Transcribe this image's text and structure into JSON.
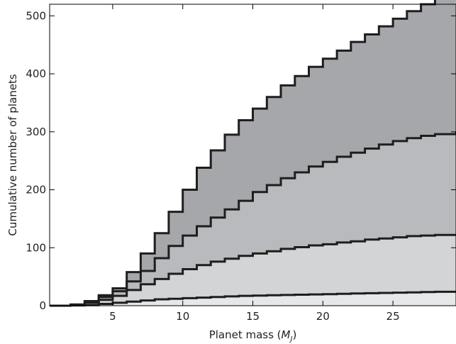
{
  "chart_data": {
    "type": "area",
    "stacked": false,
    "step": true,
    "xlabel": "Planet mass (",
    "xlabel_symbol": "M",
    "xlabel_sub": "J",
    "xlabel_close": ")",
    "ylabel": "Cumulative number of planets",
    "xlim": [
      0.5,
      29.5
    ],
    "ylim": [
      0,
      520
    ],
    "xticks": [
      5,
      10,
      15,
      20,
      25
    ],
    "yticks": [
      0,
      100,
      200,
      300,
      400,
      500
    ],
    "xtick_labels": [
      "5",
      "10",
      "15",
      "20",
      "25"
    ],
    "ytick_labels": [
      "0",
      "100",
      "200",
      "300",
      "400",
      "500"
    ],
    "grid": false,
    "legend": "none",
    "x": [
      1,
      2,
      3,
      4,
      5,
      6,
      7,
      8,
      9,
      10,
      11,
      12,
      13,
      14,
      15,
      16,
      17,
      18,
      19,
      20,
      21,
      22,
      23,
      24,
      25,
      26,
      27,
      28,
      29.5
    ],
    "series": [
      {
        "fill": "#a6a7aa",
        "values": [
          0,
          2,
          8,
          18,
          30,
          58,
          90,
          125,
          162,
          200,
          238,
          268,
          295,
          320,
          340,
          360,
          380,
          396,
          412,
          426,
          440,
          455,
          468,
          482,
          495,
          508,
          520,
          530,
          545
        ]
      },
      {
        "fill": "#b9babd",
        "values": [
          0,
          2,
          7,
          15,
          25,
          42,
          60,
          82,
          103,
          121,
          137,
          152,
          166,
          181,
          196,
          208,
          220,
          230,
          240,
          248,
          257,
          264,
          271,
          278,
          284,
          289,
          293,
          296,
          300
        ]
      },
      {
        "fill": "#d3d4d6",
        "values": [
          0,
          1,
          5,
          10,
          17,
          27,
          37,
          46,
          55,
          63,
          70,
          76,
          81,
          86,
          90,
          94,
          98,
          101,
          104,
          106,
          109,
          111,
          114,
          116,
          118,
          120,
          121,
          122,
          124
        ]
      },
      {
        "fill": "#e6e7e8",
        "values": [
          0,
          0.5,
          1,
          3,
          5,
          7,
          9,
          11,
          12,
          13,
          14,
          15,
          16,
          17,
          17.5,
          18,
          18.5,
          19,
          19.5,
          20,
          20.5,
          21,
          21.5,
          22,
          22.5,
          23,
          23.5,
          24,
          24
        ]
      }
    ],
    "line_color": "#1e1e1e"
  }
}
